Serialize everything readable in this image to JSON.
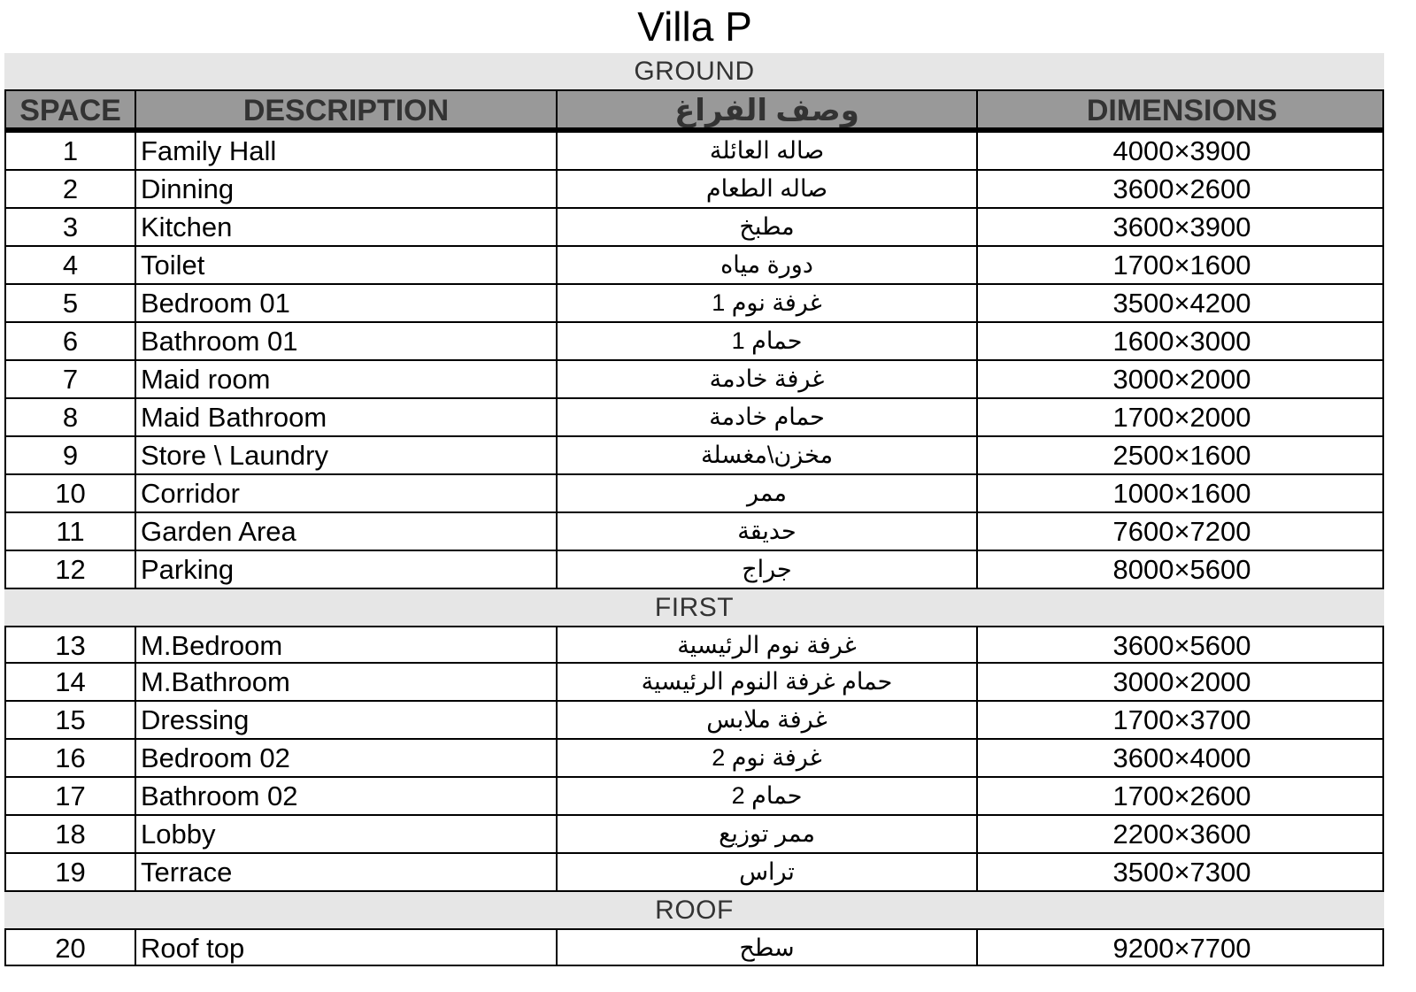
{
  "title": "Villa P",
  "headers": {
    "space": "SPACE",
    "description": "DESCRIPTION",
    "arabic": "وصف الفراغ",
    "dimensions": "DIMENSIONS"
  },
  "colors": {
    "header_bg": "#999999",
    "band_bg": "#e6e6e6"
  },
  "sections": [
    {
      "name": "GROUND",
      "rows": [
        {
          "space": "1",
          "description": "Family Hall",
          "arabic": "صاله العائلة",
          "dimensions": "4000×3900"
        },
        {
          "space": "2",
          "description": "Dinning",
          "arabic": "صاله الطعام",
          "dimensions": "3600×2600"
        },
        {
          "space": "3",
          "description": "Kitchen",
          "arabic": "مطبخ",
          "dimensions": "3600×3900"
        },
        {
          "space": "4",
          "description": "Toilet",
          "arabic": "دورة مياه",
          "dimensions": "1700×1600"
        },
        {
          "space": "5",
          "description": "Bedroom 01",
          "arabic": "غرفة نوم 1",
          "dimensions": "3500×4200"
        },
        {
          "space": "6",
          "description": "Bathroom 01",
          "arabic": "حمام 1",
          "dimensions": "1600×3000"
        },
        {
          "space": "7",
          "description": "Maid room",
          "arabic": "غرفة خادمة",
          "dimensions": "3000×2000"
        },
        {
          "space": "8",
          "description": "Maid Bathroom",
          "arabic": "حمام خادمة",
          "dimensions": "1700×2000"
        },
        {
          "space": "9",
          "description": "Store \\ Laundry",
          "arabic": "مخزن\\مغسلة",
          "dimensions": "2500×1600"
        },
        {
          "space": "10",
          "description": "Corridor",
          "arabic": "ممر",
          "dimensions": "1000×1600"
        },
        {
          "space": "11",
          "description": "Garden Area",
          "arabic": "حديقة",
          "dimensions": "7600×7200"
        },
        {
          "space": "12",
          "description": "Parking",
          "arabic": "جراج",
          "dimensions": "8000×5600"
        }
      ]
    },
    {
      "name": "FIRST",
      "rows": [
        {
          "space": "13",
          "description": "M.Bedroom",
          "arabic": "غرفة نوم الرئيسية",
          "dimensions": "3600×5600"
        },
        {
          "space": "14",
          "description": "M.Bathroom",
          "arabic": "حمام غرفة النوم الرئيسية",
          "dimensions": "3000×2000"
        },
        {
          "space": "15",
          "description": "Dressing",
          "arabic": "غرفة ملابس",
          "dimensions": "1700×3700"
        },
        {
          "space": "16",
          "description": "Bedroom 02",
          "arabic": "غرفة نوم 2",
          "dimensions": "3600×4000"
        },
        {
          "space": "17",
          "description": "Bathroom 02",
          "arabic": "حمام 2",
          "dimensions": "1700×2600"
        },
        {
          "space": "18",
          "description": "Lobby",
          "arabic": "ممر توزيع",
          "dimensions": "2200×3600"
        },
        {
          "space": "19",
          "description": "Terrace",
          "arabic": "تراس",
          "dimensions": "3500×7300"
        }
      ]
    },
    {
      "name": "ROOF",
      "rows": [
        {
          "space": "20",
          "description": "Roof top",
          "arabic": "سطح",
          "dimensions": "9200×7700"
        }
      ]
    }
  ]
}
